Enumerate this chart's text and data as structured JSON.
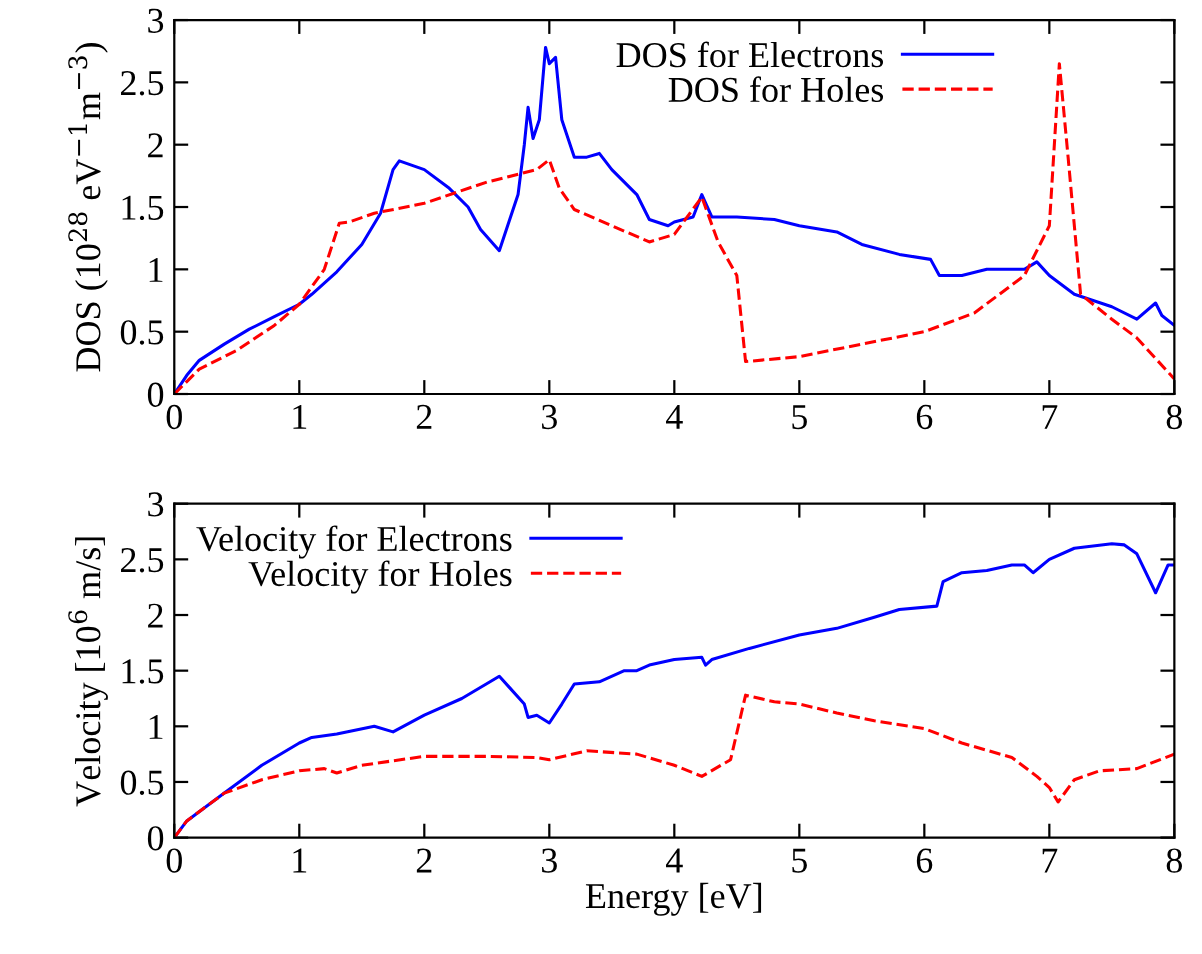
{
  "chart_data": [
    {
      "type": "line",
      "ylabel": "DOS (10$^{28}$ eV$^{−1}$m$^{−3}$)",
      "xlim": [
        0,
        8
      ],
      "ylim": [
        0,
        3
      ],
      "xticks": [
        0,
        1,
        2,
        3,
        4,
        5,
        6,
        7,
        8
      ],
      "yticks": [
        0,
        0.5,
        1,
        1.5,
        2,
        2.5,
        3
      ],
      "legend": "top right",
      "grid": false,
      "series": [
        {
          "name": "DOS for Electrons",
          "color": "#0000ff",
          "line_style": "solid",
          "x": [
            0,
            0.1,
            0.2,
            0.4,
            0.6,
            0.8,
            1,
            1.1,
            1.3,
            1.5,
            1.65,
            1.75,
            1.8,
            2.0,
            2.2,
            2.35,
            2.45,
            2.6,
            2.75,
            2.8,
            2.83,
            2.87,
            2.92,
            2.97,
            3.0,
            3.05,
            3.1,
            3.2,
            3.3,
            3.4,
            3.5,
            3.6,
            3.7,
            3.8,
            3.95,
            4.0,
            4.15,
            4.22,
            4.3,
            4.5,
            4.8,
            5.0,
            5.3,
            5.5,
            5.8,
            6.05,
            6.12,
            6.3,
            6.5,
            6.8,
            6.9,
            7.0,
            7.2,
            7.5,
            7.7,
            7.85,
            7.9,
            8.0
          ],
          "values": [
            0,
            0.15,
            0.27,
            0.4,
            0.52,
            0.62,
            0.72,
            0.8,
            0.98,
            1.2,
            1.45,
            1.8,
            1.87,
            1.8,
            1.65,
            1.5,
            1.32,
            1.15,
            1.6,
            2.0,
            2.3,
            2.05,
            2.2,
            2.78,
            2.65,
            2.7,
            2.2,
            1.9,
            1.9,
            1.93,
            1.8,
            1.7,
            1.6,
            1.4,
            1.35,
            1.38,
            1.42,
            1.6,
            1.42,
            1.42,
            1.4,
            1.35,
            1.3,
            1.2,
            1.12,
            1.08,
            0.95,
            0.95,
            1.0,
            1.0,
            1.06,
            0.95,
            0.8,
            0.7,
            0.6,
            0.73,
            0.63,
            0.55
          ]
        },
        {
          "name": "DOS for Holes",
          "color": "#ff0000",
          "line_style": "dashed",
          "x": [
            0,
            0.2,
            0.5,
            0.8,
            1.0,
            1.2,
            1.32,
            1.4,
            1.6,
            2.0,
            2.5,
            2.9,
            3.0,
            3.08,
            3.2,
            3.5,
            3.8,
            4.0,
            4.22,
            4.35,
            4.5,
            4.57,
            5.0,
            5.5,
            6.0,
            6.4,
            6.8,
            7.0,
            7.08,
            7.15,
            7.25,
            7.5,
            7.7,
            8.0
          ],
          "values": [
            0,
            0.2,
            0.35,
            0.55,
            0.72,
            1.0,
            1.37,
            1.38,
            1.45,
            1.53,
            1.7,
            1.8,
            1.88,
            1.65,
            1.48,
            1.35,
            1.22,
            1.28,
            1.58,
            1.22,
            0.95,
            0.26,
            0.3,
            0.4,
            0.5,
            0.65,
            0.95,
            1.35,
            2.65,
            1.9,
            0.8,
            0.6,
            0.45,
            0.12
          ]
        }
      ]
    },
    {
      "type": "line",
      "xlabel": "Energy [eV]",
      "ylabel": "Velocity [10$^{6}$ m/s]",
      "xlim": [
        0,
        8
      ],
      "ylim": [
        0,
        3
      ],
      "xticks": [
        0,
        1,
        2,
        3,
        4,
        5,
        6,
        7,
        8
      ],
      "yticks": [
        0,
        0.5,
        1,
        1.5,
        2,
        2.5,
        3
      ],
      "legend": "top left",
      "grid": false,
      "series": [
        {
          "name": "Velocity for Electrons",
          "color": "#0000ff",
          "line_style": "solid",
          "x": [
            0,
            0.1,
            0.4,
            0.7,
            1.0,
            1.1,
            1.3,
            1.6,
            1.75,
            2.0,
            2.3,
            2.6,
            2.8,
            2.83,
            2.9,
            3.0,
            3.1,
            3.2,
            3.4,
            3.6,
            3.7,
            3.8,
            4.0,
            4.22,
            4.25,
            4.3,
            4.6,
            5.0,
            5.3,
            5.6,
            5.8,
            6.1,
            6.15,
            6.3,
            6.5,
            6.7,
            6.8,
            6.87,
            7.0,
            7.2,
            7.5,
            7.6,
            7.7,
            7.85,
            7.95,
            8.0
          ],
          "values": [
            0,
            0.15,
            0.4,
            0.65,
            0.85,
            0.9,
            0.93,
            1.0,
            0.95,
            1.1,
            1.25,
            1.45,
            1.2,
            1.08,
            1.1,
            1.03,
            1.2,
            1.38,
            1.4,
            1.5,
            1.5,
            1.55,
            1.6,
            1.62,
            1.55,
            1.6,
            1.7,
            1.82,
            1.88,
            1.98,
            2.05,
            2.08,
            2.3,
            2.38,
            2.4,
            2.45,
            2.45,
            2.38,
            2.5,
            2.6,
            2.64,
            2.63,
            2.55,
            2.2,
            2.45,
            2.45
          ]
        },
        {
          "name": "Velocity for Holes",
          "color": "#ff0000",
          "line_style": "dashed",
          "x": [
            0,
            0.1,
            0.4,
            0.7,
            1.0,
            1.2,
            1.3,
            1.5,
            2.0,
            2.5,
            2.9,
            3.0,
            3.3,
            3.7,
            4.0,
            4.22,
            4.45,
            4.57,
            4.8,
            5.0,
            5.3,
            5.6,
            6.0,
            6.3,
            6.7,
            6.9,
            7.0,
            7.07,
            7.2,
            7.4,
            7.7,
            8.0
          ],
          "values": [
            0,
            0.15,
            0.4,
            0.52,
            0.6,
            0.62,
            0.58,
            0.65,
            0.73,
            0.73,
            0.72,
            0.7,
            0.78,
            0.75,
            0.65,
            0.55,
            0.7,
            1.28,
            1.22,
            1.2,
            1.12,
            1.05,
            0.98,
            0.85,
            0.72,
            0.55,
            0.45,
            0.32,
            0.52,
            0.6,
            0.62,
            0.75
          ]
        }
      ]
    }
  ]
}
